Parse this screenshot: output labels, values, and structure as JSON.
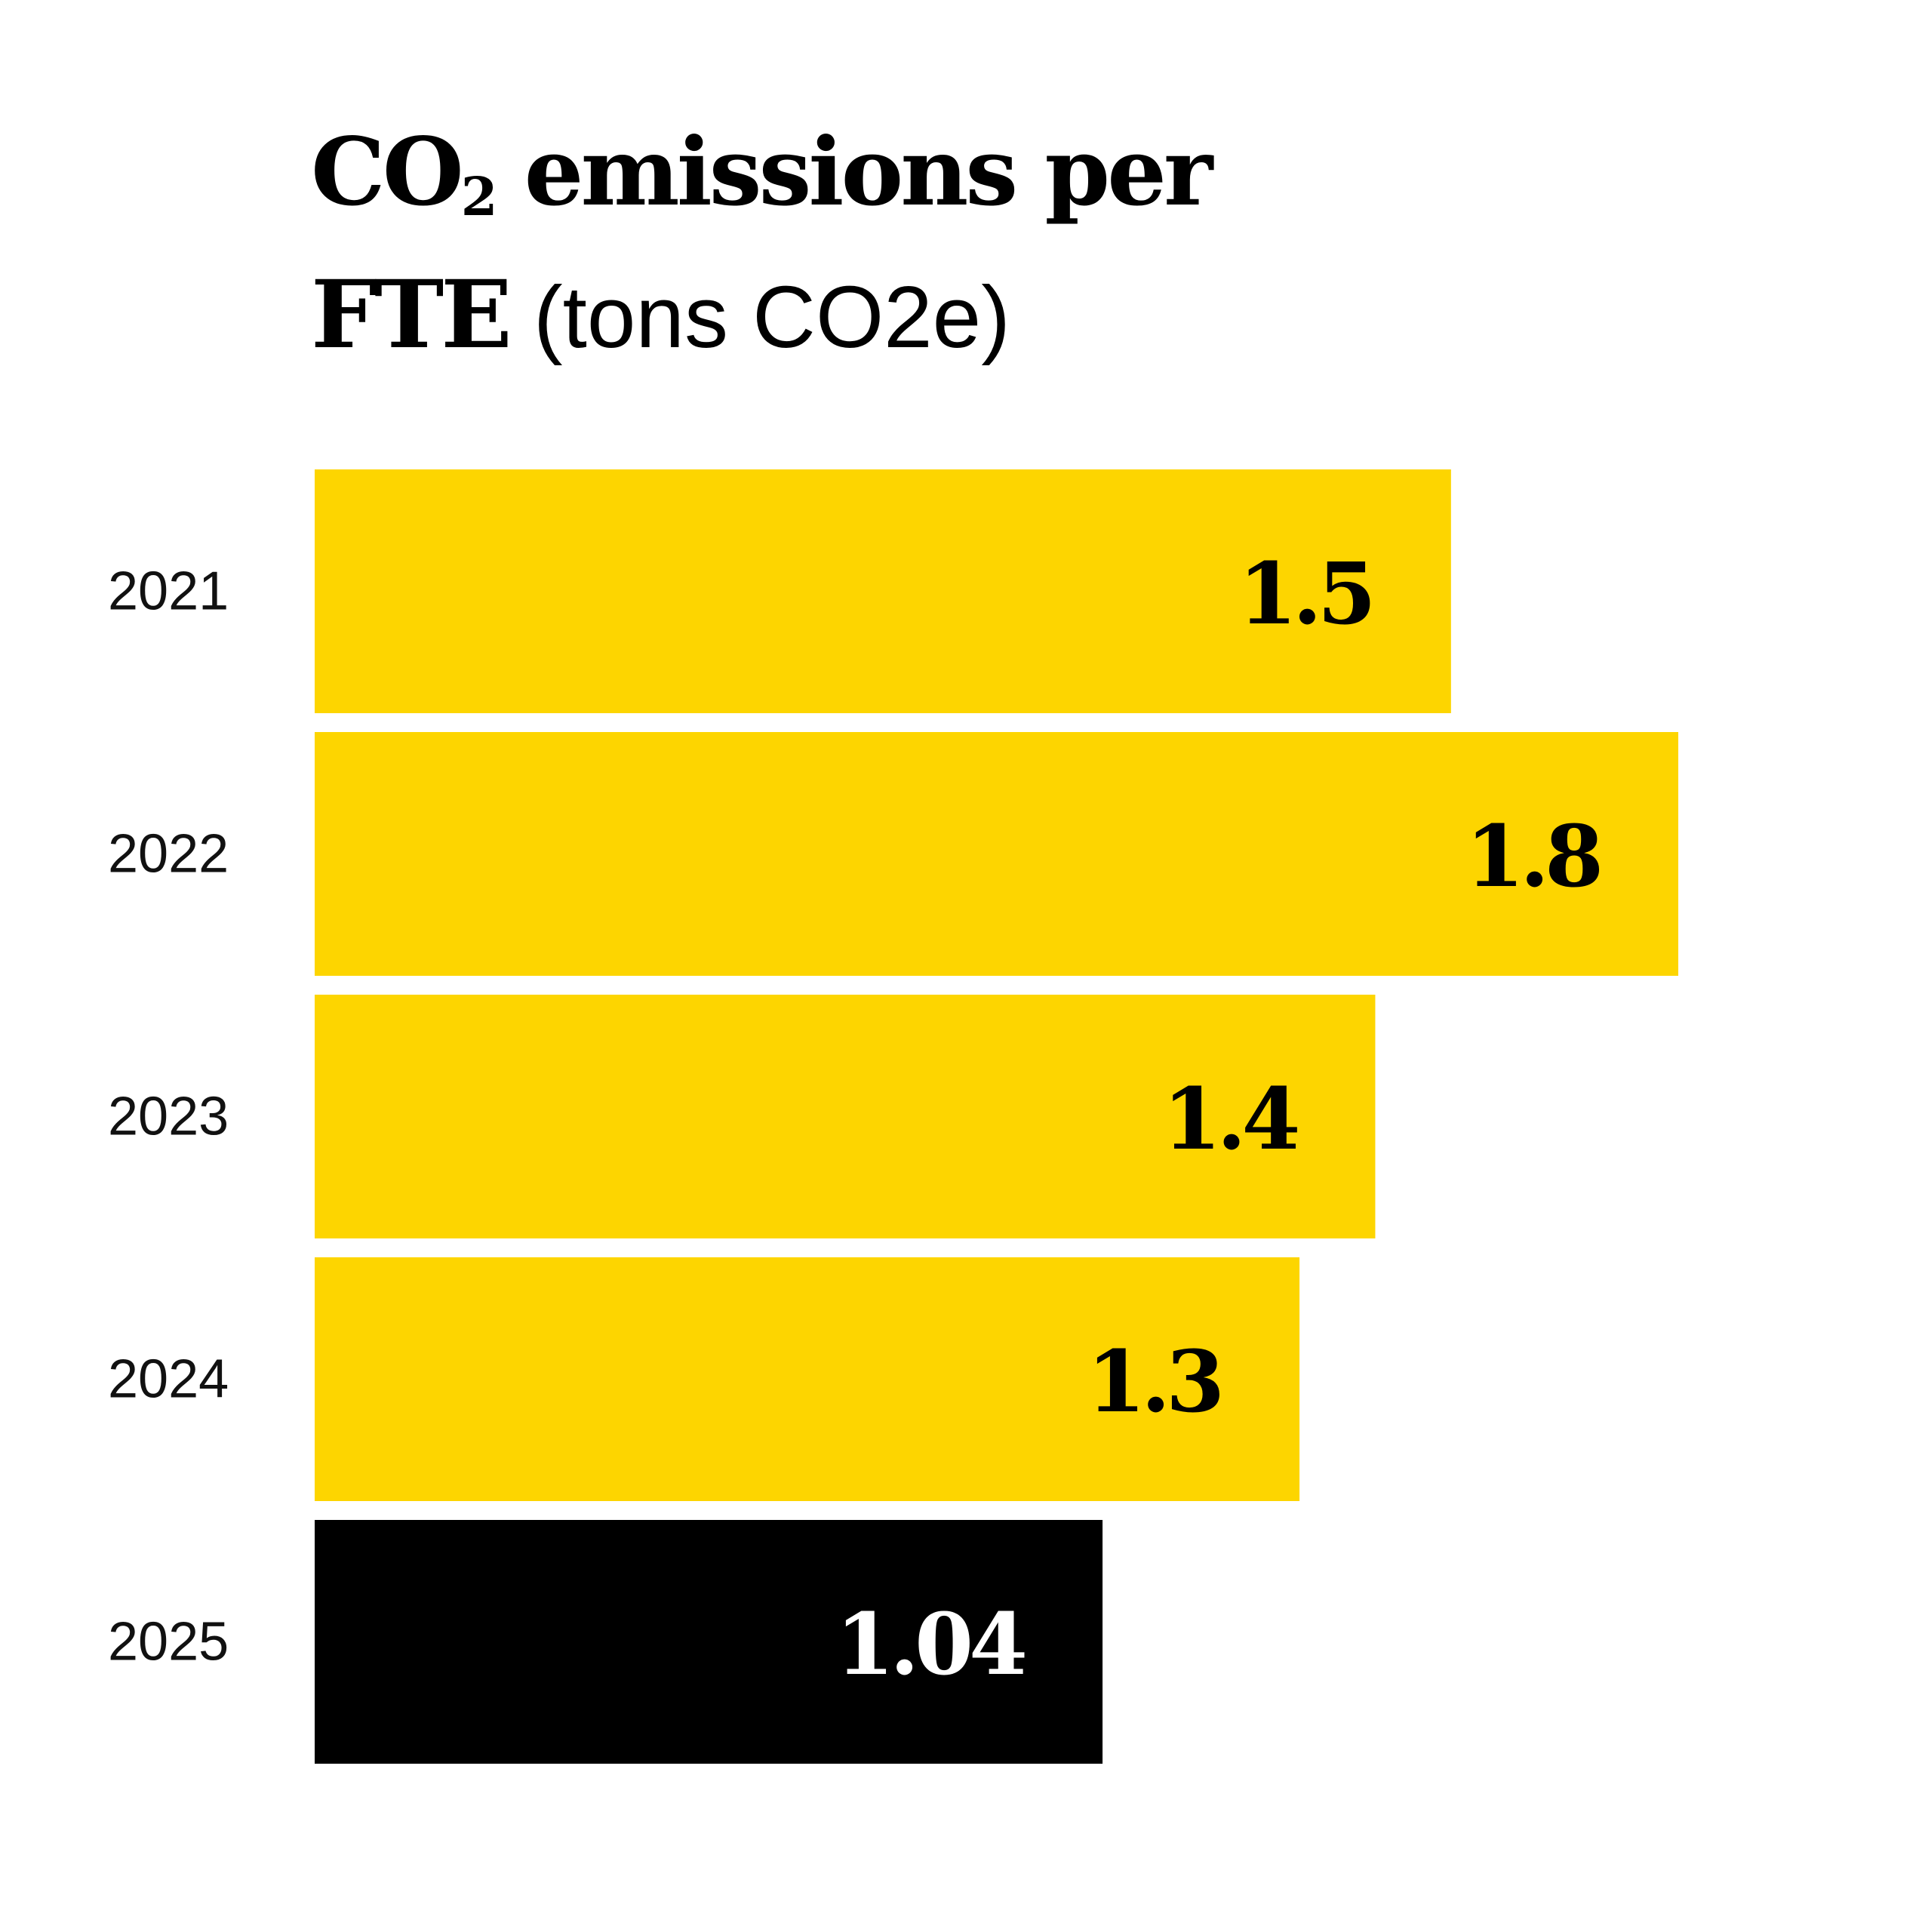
{
  "title": {
    "line1_part1": "CO",
    "line1_sub": "2",
    "line1_part2": " emissions per",
    "line2_bold": "FTE",
    "line2_unit": " (tons CO2e)"
  },
  "colors": {
    "highlight": "#FDD500",
    "current": "#000000",
    "label_dark": "#000000",
    "label_light": "#ffffff"
  },
  "chart_data": {
    "type": "bar",
    "orientation": "horizontal",
    "title": "CO2 emissions per FTE (tons CO2e)",
    "xlabel": "",
    "ylabel": "",
    "xlim": [
      0,
      1.8
    ],
    "grid": false,
    "categories": [
      "2021",
      "2022",
      "2023",
      "2024",
      "2025"
    ],
    "values": [
      1.5,
      1.8,
      1.4,
      1.3,
      1.04
    ],
    "value_labels": [
      "1.5",
      "1.8",
      "1.4",
      "1.3",
      "1.04"
    ]
  }
}
